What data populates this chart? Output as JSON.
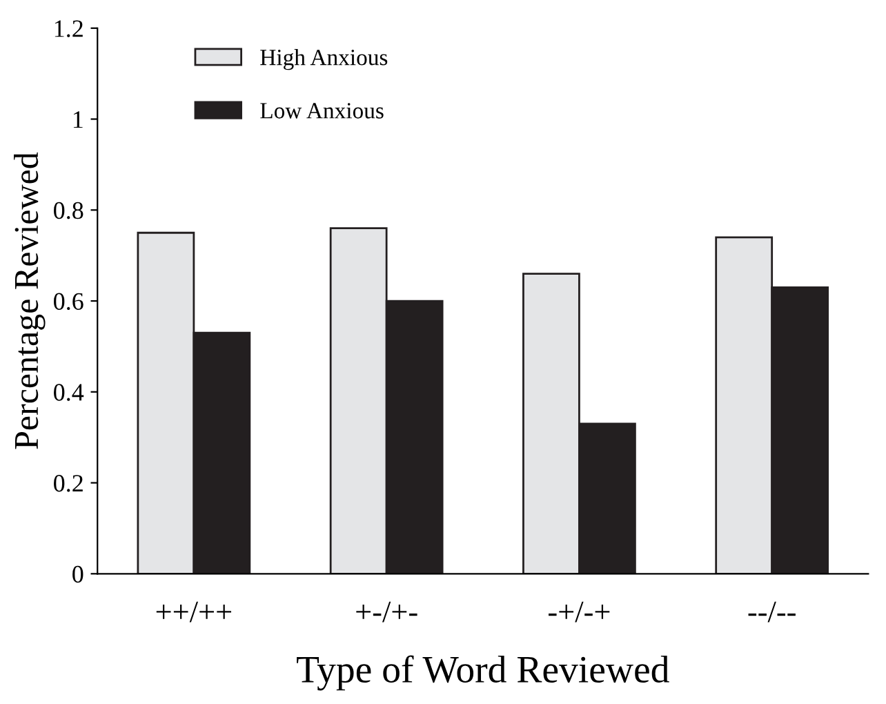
{
  "chart_data": {
    "type": "bar",
    "xlabel": "Type of Word Reviewed",
    "ylabel": "Percentage Reviewed",
    "categories": [
      "++/++",
      "+-/+-",
      "-+/-+",
      "--/--"
    ],
    "series": [
      {
        "name": "High Anxious",
        "color": "#e4e5e7",
        "values": [
          0.75,
          0.76,
          0.66,
          0.74
        ]
      },
      {
        "name": "Low Anxious",
        "color": "#231f20",
        "values": [
          0.53,
          0.6,
          0.33,
          0.63
        ]
      }
    ],
    "ylim": [
      0,
      1.2
    ],
    "yticks": [
      0,
      0.2,
      0.4,
      0.6,
      0.8,
      1,
      1.2
    ],
    "grid": false,
    "legend": "top left"
  }
}
